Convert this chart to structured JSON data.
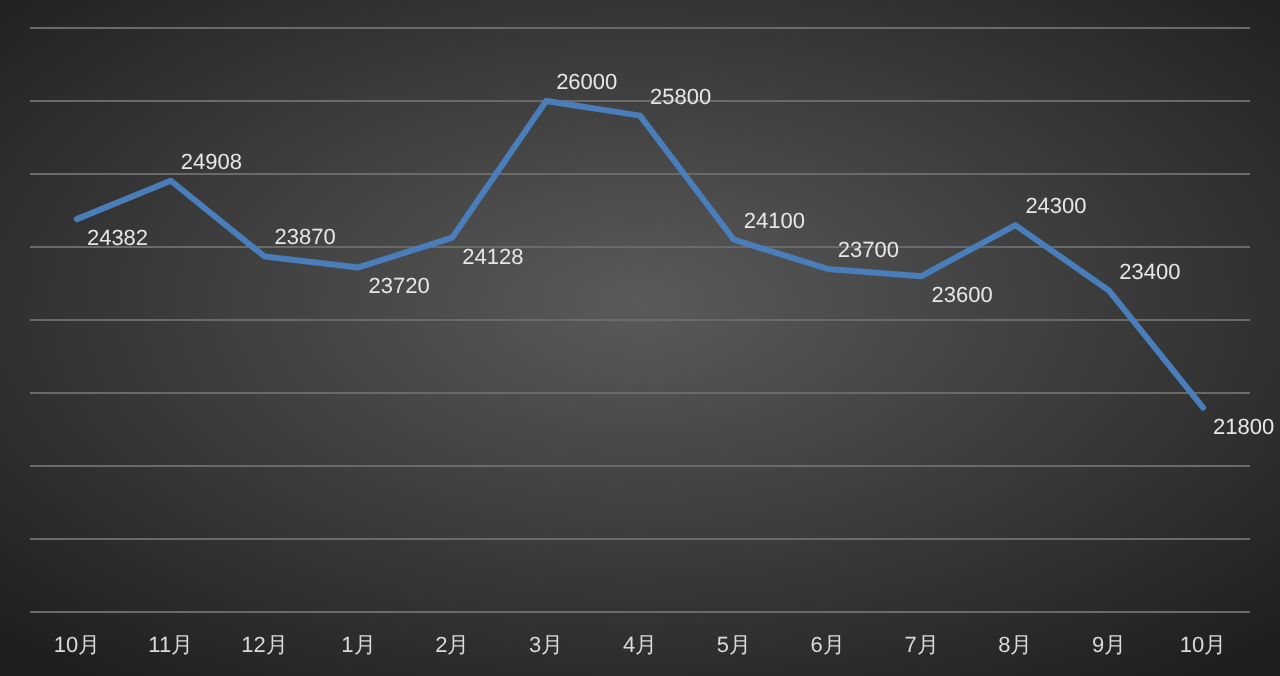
{
  "chart_data": {
    "type": "line",
    "categories": [
      "10月",
      "11月",
      "12月",
      "1月",
      "2月",
      "3月",
      "4月",
      "5月",
      "6月",
      "7月",
      "8月",
      "9月",
      "10月"
    ],
    "series": [
      {
        "color": "#4a7ebb",
        "values": [
          24382,
          24908,
          23870,
          23720,
          24128,
          26000,
          25800,
          24100,
          23700,
          23600,
          24300,
          23400,
          21800
        ]
      }
    ],
    "ylim": [
      19000,
      27000
    ],
    "yticks": [
      {
        "value": 19000,
        "label": null
      },
      {
        "value": 20000,
        "label": null
      },
      {
        "value": 21000,
        "label": null
      },
      {
        "value": 22000,
        "label": null
      },
      {
        "value": 23000,
        "label": null
      },
      {
        "value": 24000,
        "label": null
      },
      {
        "value": 25000,
        "label": null
      },
      {
        "value": 26000,
        "label": null
      },
      {
        "value": 27000,
        "label": null
      }
    ],
    "tick_labels": "x",
    "grid": "y",
    "data_labels": true,
    "marker": "none",
    "line_style": "solid"
  }
}
